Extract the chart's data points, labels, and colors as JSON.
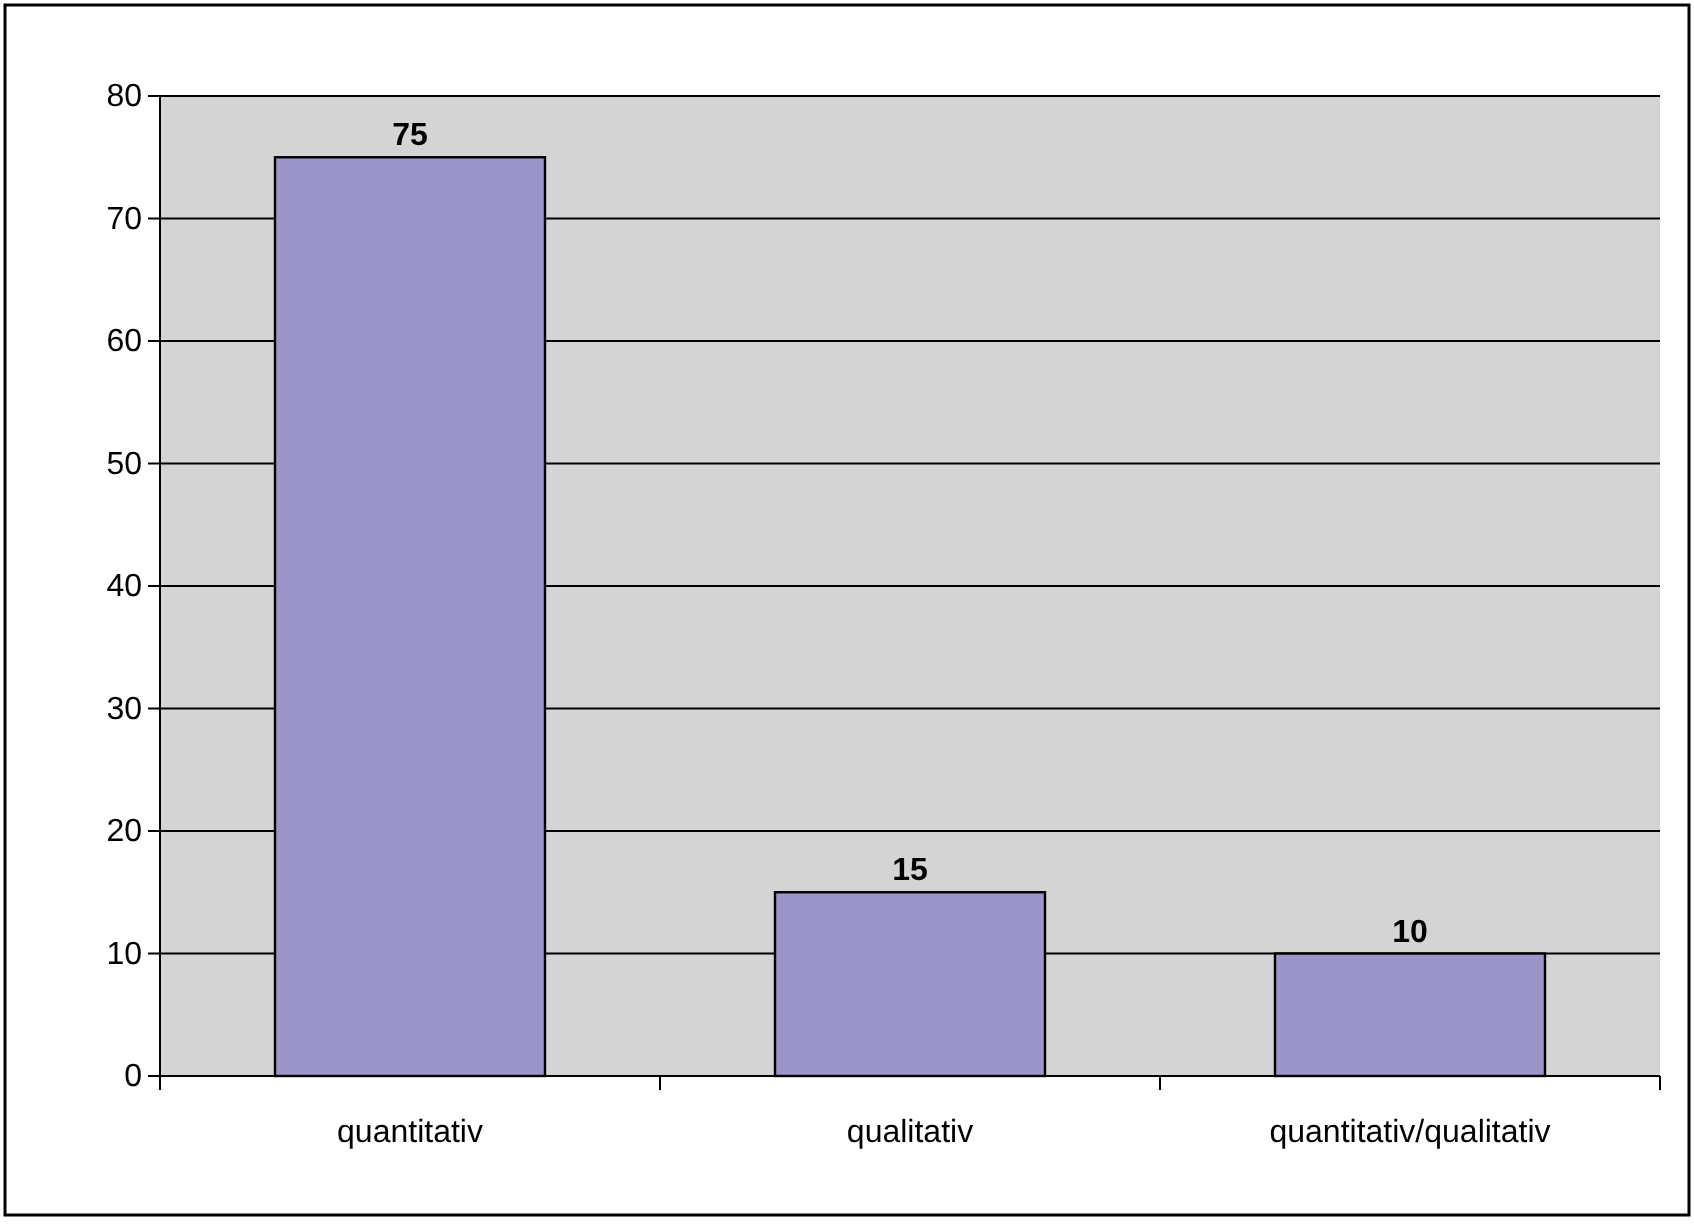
{
  "chart_data": {
    "type": "bar",
    "categories": [
      "quantitativ",
      "qualitativ",
      "quantitativ/qualitativ"
    ],
    "values": [
      75,
      15,
      10
    ],
    "color": "#9b95c9",
    "ylim": [
      0,
      80
    ],
    "yticks": [
      0,
      10,
      20,
      30,
      40,
      50,
      60,
      70,
      80
    ],
    "grid": "y",
    "data_labels": true
  }
}
